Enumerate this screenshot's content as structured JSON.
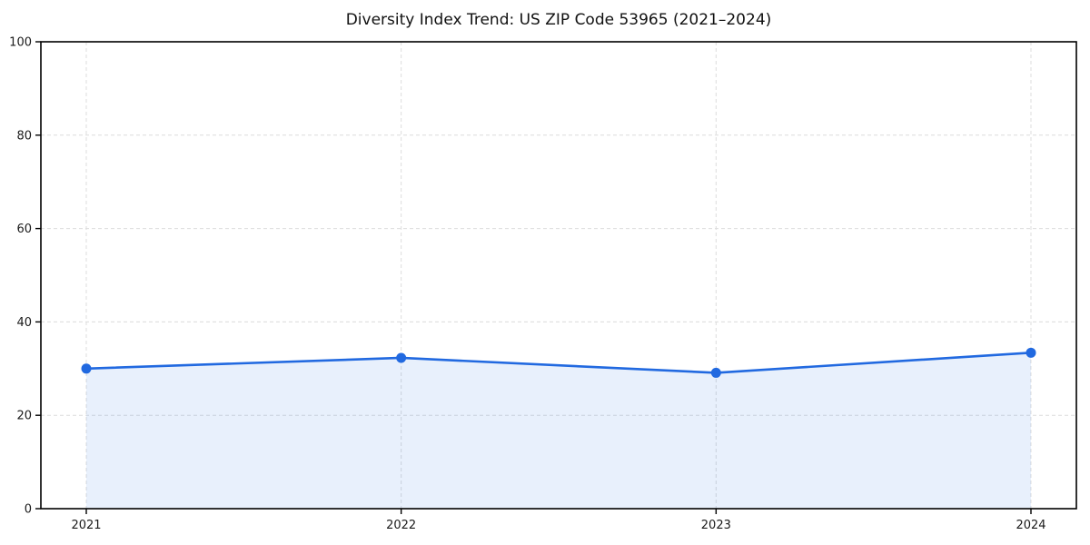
{
  "chart_data": {
    "type": "line",
    "title": "Diversity Index Trend: US ZIP Code 53965 (2021–2024)",
    "x": [
      2021,
      2022,
      2023,
      2024
    ],
    "series": [
      {
        "name": "Diversity Index",
        "values": [
          30.0,
          32.3,
          29.1,
          33.4
        ]
      }
    ],
    "xlabel": "",
    "ylabel": "",
    "ylim": [
      0,
      100
    ],
    "yticks": [
      0,
      20,
      40,
      60,
      80,
      100
    ],
    "grid": "dashed, horizontal and vertical at ticks",
    "legend": "none",
    "area_fill": true,
    "line_color": "#2169e0",
    "marker_color": "#2169e0",
    "fill_color": "rgba(33,105,224,0.10)",
    "grid_color": "#dcdcdc",
    "axis_color": "#000000",
    "text_color": "#1a1a1a",
    "background": "#ffffff"
  }
}
